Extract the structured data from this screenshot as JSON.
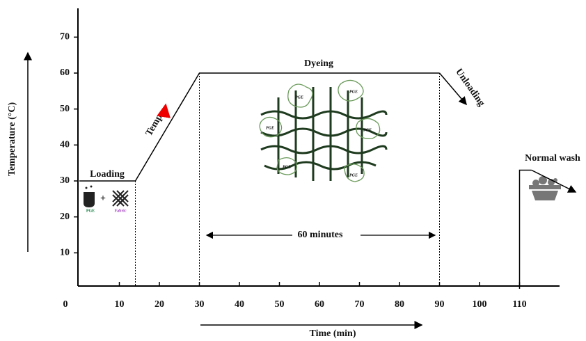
{
  "chart_data": {
    "type": "line",
    "x_label": "Time (min)",
    "y_label": "Temperature (°C)",
    "xlim": [
      0,
      120
    ],
    "ylim": [
      0,
      78
    ],
    "xticks": [
      0,
      10,
      20,
      30,
      40,
      50,
      60,
      70,
      80,
      90,
      100,
      110
    ],
    "yticks": [
      10,
      20,
      30,
      40,
      50,
      60,
      70
    ],
    "color": "#000000",
    "series": [
      {
        "x": [
          0,
          14,
          30,
          90
        ],
        "values": [
          30,
          30,
          60,
          60
        ]
      },
      {
        "x": [
          110,
          110,
          113
        ],
        "values": [
          0,
          33,
          33
        ]
      }
    ],
    "annotations": [
      "Loading",
      "Temp",
      "Dyeing",
      "Unloading",
      "Normal wash",
      "60 minutes"
    ],
    "icon_labels": [
      "PGE",
      "Fabric"
    ],
    "fabric_labels": [
      "PGE",
      "PGE",
      "PGE",
      "PGE",
      "PGE",
      "PGE"
    ]
  }
}
